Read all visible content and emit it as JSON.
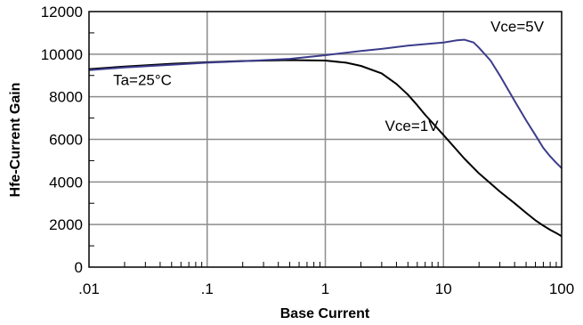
{
  "chart_data": {
    "type": "line",
    "title": "",
    "xlabel": "Base Current",
    "ylabel": "Hfe-Current Gain",
    "x_scale": "log",
    "xlim": [
      0.01,
      100
    ],
    "ylim": [
      0,
      12000
    ],
    "x_tick_labels": [
      ".01",
      ".1",
      "1",
      "10",
      "100"
    ],
    "x_tick_values": [
      0.01,
      0.1,
      1,
      10,
      100
    ],
    "y_tick_values": [
      0,
      2000,
      4000,
      6000,
      8000,
      10000,
      12000
    ],
    "y_tick_labels": [
      "0",
      "2000",
      "4000",
      "6000",
      "8000",
      "10000",
      "12000"
    ],
    "grid": true,
    "annotations": [
      {
        "text": "Ta=25°C",
        "x": 0.016,
        "y": 8550
      },
      {
        "text": "Vce=5V",
        "x": 25,
        "y": 11050
      },
      {
        "text": "Vce=1V",
        "x": 3.2,
        "y": 6400
      }
    ],
    "series": [
      {
        "name": "Vce=1V",
        "color": "#000000",
        "points": [
          [
            0.01,
            9300
          ],
          [
            0.02,
            9420
          ],
          [
            0.05,
            9550
          ],
          [
            0.1,
            9620
          ],
          [
            0.2,
            9680
          ],
          [
            0.5,
            9720
          ],
          [
            1,
            9700
          ],
          [
            1.5,
            9600
          ],
          [
            2,
            9450
          ],
          [
            3,
            9100
          ],
          [
            4,
            8600
          ],
          [
            5,
            8100
          ],
          [
            6,
            7600
          ],
          [
            7,
            7150
          ],
          [
            8,
            6800
          ],
          [
            10,
            6200
          ],
          [
            15,
            5100
          ],
          [
            20,
            4400
          ],
          [
            30,
            3550
          ],
          [
            40,
            3000
          ],
          [
            50,
            2550
          ],
          [
            60,
            2200
          ],
          [
            70,
            1950
          ],
          [
            80,
            1750
          ],
          [
            90,
            1600
          ],
          [
            100,
            1450
          ]
        ]
      },
      {
        "name": "Vce=5V",
        "color": "#3c3c8c",
        "points": [
          [
            0.01,
            9250
          ],
          [
            0.02,
            9380
          ],
          [
            0.05,
            9500
          ],
          [
            0.1,
            9600
          ],
          [
            0.2,
            9670
          ],
          [
            0.5,
            9780
          ],
          [
            1,
            9950
          ],
          [
            2,
            10150
          ],
          [
            3,
            10250
          ],
          [
            5,
            10400
          ],
          [
            8,
            10500
          ],
          [
            10,
            10550
          ],
          [
            13,
            10650
          ],
          [
            15,
            10680
          ],
          [
            18,
            10550
          ],
          [
            20,
            10300
          ],
          [
            25,
            9700
          ],
          [
            30,
            9000
          ],
          [
            40,
            7800
          ],
          [
            50,
            6900
          ],
          [
            60,
            6200
          ],
          [
            70,
            5600
          ],
          [
            80,
            5200
          ],
          [
            90,
            4900
          ],
          [
            100,
            4650
          ]
        ]
      }
    ]
  }
}
